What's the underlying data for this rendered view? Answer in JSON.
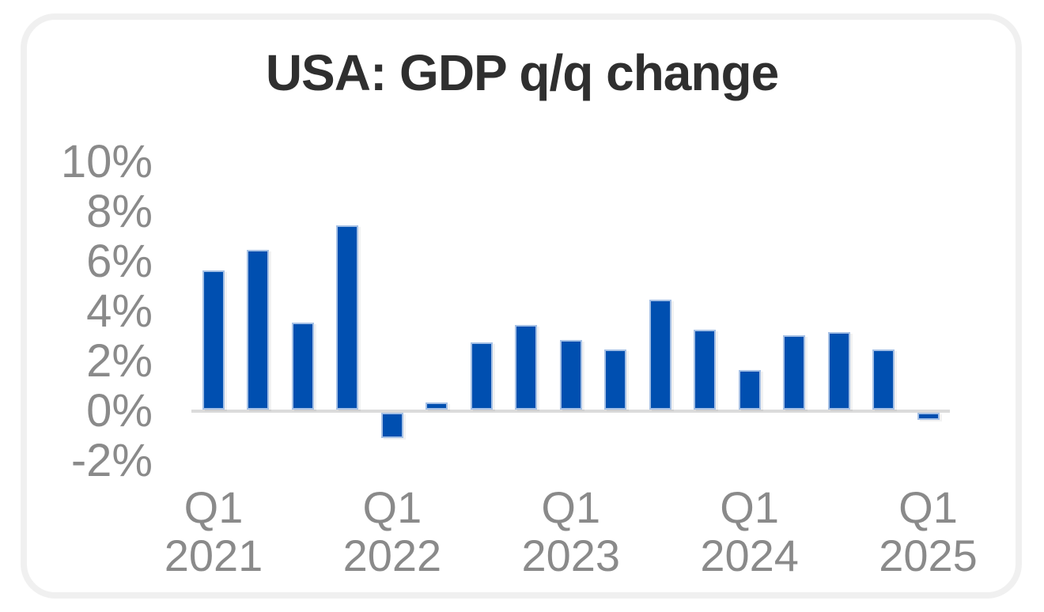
{
  "chart_data": {
    "type": "bar",
    "title": "USA: GDP q/q change",
    "unit": "%",
    "categories": [
      "Q1 2021",
      "Q2 2021",
      "Q3 2021",
      "Q4 2021",
      "Q1 2022",
      "Q2 2022",
      "Q3 2022",
      "Q4 2022",
      "Q1 2023",
      "Q2 2023",
      "Q3 2023",
      "Q4 2023",
      "Q1 2024",
      "Q2 2024",
      "Q3 2024",
      "Q4 2024",
      "Q1 2025"
    ],
    "values": [
      5.6,
      6.4,
      3.5,
      7.4,
      -1.0,
      0.3,
      2.7,
      3.4,
      2.8,
      2.4,
      4.4,
      3.2,
      1.6,
      3.0,
      3.1,
      2.4,
      -0.3
    ],
    "ylim": [
      -2,
      10
    ],
    "y_ticks": [
      10,
      8,
      6,
      4,
      2,
      0,
      -2
    ],
    "y_tick_labels": [
      "10%",
      "8%",
      "6%",
      "4%",
      "2%",
      "0%",
      "-2%"
    ],
    "x_ticks": [
      {
        "index": 0,
        "lines": [
          "Q1",
          "2021"
        ]
      },
      {
        "index": 4,
        "lines": [
          "Q1",
          "2022"
        ]
      },
      {
        "index": 8,
        "lines": [
          "Q1",
          "2023"
        ]
      },
      {
        "index": 12,
        "lines": [
          "Q1",
          "2024"
        ]
      },
      {
        "index": 16,
        "lines": [
          "Q1",
          "2025"
        ]
      }
    ],
    "grid": false,
    "legend": false,
    "colors": {
      "bar_fill": "#004FB0",
      "bar_stroke": "#A5C0E5",
      "zero_line": "#DBDBDB",
      "axis_label": "#8A8A8A",
      "title": "#2F2F2F",
      "card_border": "#F0F0F0",
      "background": "#FFFFFF"
    }
  }
}
